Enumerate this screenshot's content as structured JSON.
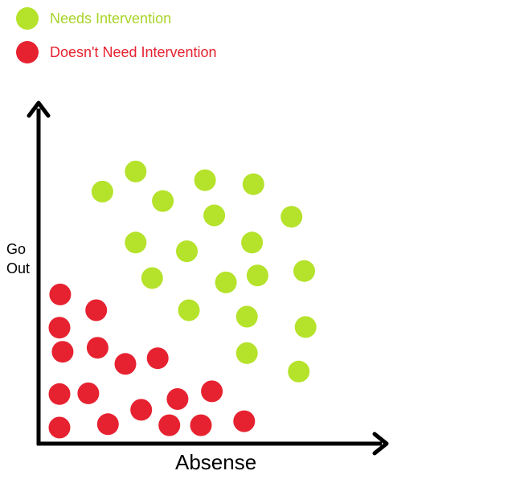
{
  "chart_data": {
    "type": "scatter",
    "xlabel": "Absense",
    "ylabel": "Go Out",
    "xlim": [
      0,
      10
    ],
    "ylim": [
      0,
      10
    ],
    "grid": false,
    "legend_placement": "top-left",
    "series": [
      {
        "name": "Needs Intervention",
        "color": "#b5e22a",
        "points": [
          [
            1.86,
            7.52
          ],
          [
            2.83,
            8.12
          ],
          [
            3.62,
            7.24
          ],
          [
            4.85,
            7.86
          ],
          [
            6.26,
            7.74
          ],
          [
            5.12,
            6.81
          ],
          [
            7.37,
            6.77
          ],
          [
            2.83,
            6.0
          ],
          [
            4.32,
            5.74
          ],
          [
            6.22,
            6.0
          ],
          [
            3.31,
            4.94
          ],
          [
            5.46,
            4.81
          ],
          [
            6.38,
            5.02
          ],
          [
            7.74,
            5.15
          ],
          [
            4.38,
            3.98
          ],
          [
            6.07,
            3.79
          ],
          [
            7.78,
            3.48
          ],
          [
            6.07,
            2.7
          ],
          [
            7.58,
            2.15
          ]
        ]
      },
      {
        "name": "Doesn't Need Intervention",
        "color": "#e62230",
        "points": [
          [
            0.63,
            4.45
          ],
          [
            1.68,
            3.98
          ],
          [
            0.61,
            3.46
          ],
          [
            1.72,
            2.86
          ],
          [
            0.7,
            2.74
          ],
          [
            2.53,
            2.38
          ],
          [
            3.47,
            2.55
          ],
          [
            0.61,
            1.48
          ],
          [
            1.45,
            1.5
          ],
          [
            2.99,
            1.01
          ],
          [
            4.05,
            1.33
          ],
          [
            5.05,
            1.56
          ],
          [
            0.61,
            0.48
          ],
          [
            2.02,
            0.58
          ],
          [
            3.81,
            0.55
          ],
          [
            4.73,
            0.55
          ],
          [
            5.99,
            0.67
          ]
        ]
      }
    ]
  }
}
